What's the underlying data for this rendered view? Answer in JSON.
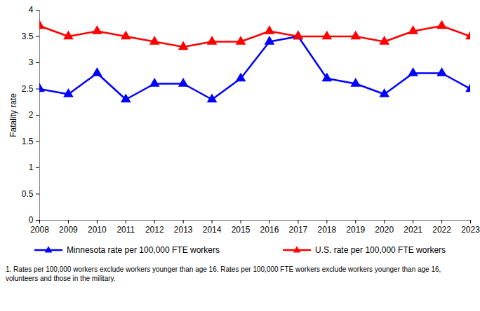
{
  "chart_data": {
    "type": "line",
    "y_label": "Fatality rate",
    "x": [
      2008,
      2009,
      2010,
      2011,
      2012,
      2013,
      2014,
      2015,
      2016,
      2017,
      2018,
      2019,
      2020,
      2021,
      2022,
      2023
    ],
    "series": [
      {
        "name": "Minnesota rate per 100,000 FTE workers",
        "color": "#0000ff",
        "marker": "triangle",
        "line_style": "solid",
        "values": [
          2.5,
          2.4,
          2.8,
          2.3,
          2.6,
          2.6,
          2.3,
          2.7,
          3.4,
          3.5,
          2.7,
          2.6,
          2.4,
          2.8,
          2.8,
          2.5
        ]
      },
      {
        "name": "U.S. rate per 100,000 FTE workers",
        "color": "#ff0000",
        "marker": "triangle",
        "line_style": "solid",
        "values": [
          3.7,
          3.5,
          3.6,
          3.5,
          3.4,
          3.3,
          3.4,
          3.4,
          3.6,
          3.5,
          3.5,
          3.5,
          3.4,
          3.6,
          3.7,
          3.5
        ]
      }
    ],
    "xlim": [
      2008,
      2023
    ],
    "xticks": [
      2008,
      2009,
      2010,
      2011,
      2012,
      2013,
      2014,
      2015,
      2016,
      2017,
      2018,
      2019,
      2020,
      2021,
      2022,
      2023
    ],
    "ylim": [
      0,
      4
    ],
    "yticks": [
      0,
      0.5,
      1,
      1.5,
      2,
      2.5,
      3,
      3.5,
      4
    ],
    "grid": false,
    "legend": "bottom",
    "footnote": "1.  Rates per 100,000 workers exclude workers younger than age 16. Rates per 100,000 FTE workers exclude workers younger than age 16, volunteers and those in the military."
  }
}
